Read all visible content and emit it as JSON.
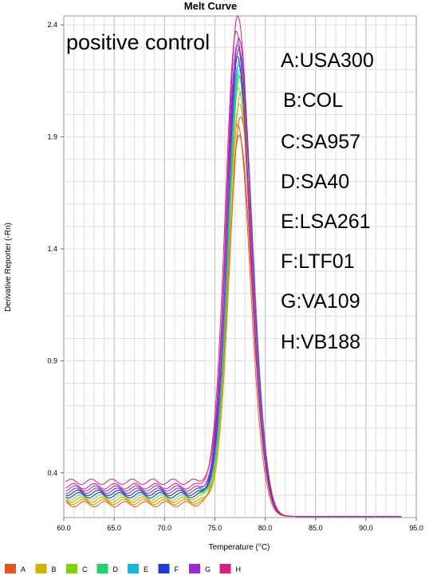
{
  "chart_data": {
    "type": "line",
    "title": "Melt Curve",
    "xlabel": "Temperature (°C)",
    "ylabel": "Derivative Reporter (-Rn)",
    "xlim": [
      60.0,
      95.0
    ],
    "ylim": [
      0.2,
      2.44
    ],
    "xticks": [
      "60.0",
      "65.0",
      "70.0",
      "75.0",
      "80.0",
      "85.0",
      "90.0",
      "95.0"
    ],
    "yticks": [
      "0.4",
      "0.9",
      "1.4",
      "1.9",
      "2.4"
    ],
    "grid": true,
    "annotations": {
      "panel_label": "positive control",
      "sample_key": [
        "A:USA300",
        "B:COL",
        "C:SA957",
        "D:SA40",
        "E:LSA261",
        "F:LTF01",
        "G:VA109",
        "H:VB188"
      ]
    },
    "legend_position": "bottom",
    "series": [
      {
        "name": "A",
        "color": "#e8541e",
        "peak_x": 77.4,
        "peaks": [
          1.96,
          1.91,
          1.99
        ],
        "bases": [
          0.26,
          0.27,
          0.28
        ]
      },
      {
        "name": "B",
        "color": "#d4b000",
        "peak_x": 77.5,
        "peaks": [
          2.05,
          2.1
        ],
        "bases": [
          0.27,
          0.28
        ]
      },
      {
        "name": "C",
        "color": "#7fd400",
        "peak_x": 77.4,
        "peaks": [
          2.12,
          2.17
        ],
        "bases": [
          0.29,
          0.3
        ]
      },
      {
        "name": "D",
        "color": "#1fd46e",
        "peak_x": 77.4,
        "peaks": [
          2.18,
          2.2
        ],
        "bases": [
          0.3,
          0.31
        ]
      },
      {
        "name": "E",
        "color": "#1ab8d8",
        "peak_x": 77.4,
        "peaks": [
          2.22,
          2.25
        ],
        "bases": [
          0.31,
          0.32
        ]
      },
      {
        "name": "F",
        "color": "#1f3bd8",
        "peak_x": 77.3,
        "peaks": [
          2.26,
          2.29
        ],
        "bases": [
          0.3,
          0.31
        ]
      },
      {
        "name": "G",
        "color": "#9a28d8",
        "peak_x": 77.3,
        "peaks": [
          2.31,
          2.34
        ],
        "bases": [
          0.32,
          0.33
        ]
      },
      {
        "name": "H",
        "color": "#d81f7e",
        "peak_x": 77.2,
        "peaks": [
          2.37,
          2.44
        ],
        "bases": [
          0.34,
          0.36
        ]
      }
    ]
  }
}
